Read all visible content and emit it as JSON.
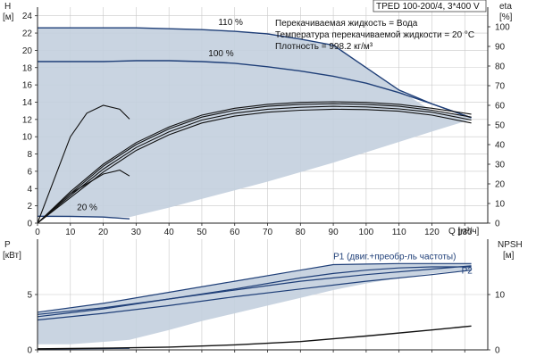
{
  "chart_data": [
    {
      "type": "line",
      "title": "TPED 100-200/4, 3*400 V",
      "info_lines": [
        "Перекачиваемая жидкость = Вода",
        "Температура перекачиваемой жидкости = 20 °C",
        "Плотность = 998.2 кг/м³"
      ],
      "xlabel": "Q [м³/ч]",
      "ylabel": "H\n[м]",
      "y2label": "eta\n[%]",
      "xlim": [
        0,
        137
      ],
      "ylim": [
        0,
        25
      ],
      "y2lim": [
        0,
        110
      ],
      "xticks": [
        0,
        10,
        20,
        30,
        40,
        50,
        60,
        70,
        80,
        90,
        100,
        110,
        120,
        130
      ],
      "yticks": [
        0,
        2,
        4,
        6,
        8,
        10,
        12,
        14,
        16,
        18,
        20,
        22,
        24
      ],
      "y2ticks": [
        0,
        10,
        20,
        30,
        40,
        50,
        60,
        70,
        80,
        90,
        100
      ],
      "curve_labels": [
        {
          "text": "110 %",
          "x": 55,
          "y": 22.6
        },
        {
          "text": "100 %",
          "x": 52,
          "y": 19.0
        },
        {
          "text": "20 %",
          "x": 12,
          "y": 1.2
        }
      ],
      "operating_area": {
        "upper": [
          [
            0,
            22.6
          ],
          [
            20,
            22.6
          ],
          [
            40,
            22.5
          ],
          [
            60,
            22.2
          ],
          [
            80,
            21.3
          ],
          [
            90,
            20.6
          ],
          [
            100,
            18.0
          ],
          [
            110,
            15.4
          ],
          [
            120,
            13.0
          ],
          [
            132,
            12.2
          ]
        ],
        "lower": [
          [
            132,
            12.0
          ],
          [
            120,
            10.6
          ],
          [
            110,
            9.4
          ],
          [
            100,
            8.2
          ],
          [
            90,
            7.0
          ],
          [
            80,
            5.9
          ],
          [
            70,
            4.8
          ],
          [
            60,
            3.8
          ],
          [
            50,
            2.8
          ],
          [
            40,
            1.8
          ],
          [
            28,
            0.7
          ],
          [
            0,
            0.7
          ]
        ]
      },
      "series": [
        {
          "name": "110 %",
          "x": [
            0,
            10,
            20,
            30,
            40,
            50,
            60,
            70,
            80,
            90,
            100,
            110,
            120,
            132
          ],
          "y": [
            22.6,
            22.6,
            22.6,
            22.6,
            22.5,
            22.4,
            22.2,
            21.9,
            21.3,
            20.6,
            18.0,
            15.4,
            13.8,
            12.2
          ]
        },
        {
          "name": "100 %",
          "x": [
            0,
            10,
            20,
            30,
            40,
            50,
            60,
            70,
            80,
            90,
            100,
            110,
            120,
            132
          ],
          "y": [
            18.7,
            18.7,
            18.7,
            18.8,
            18.8,
            18.7,
            18.5,
            18.1,
            17.6,
            17.0,
            16.2,
            15.1,
            13.8,
            12.2
          ]
        },
        {
          "name": "20 %",
          "x": [
            0,
            10,
            20,
            28
          ],
          "y": [
            0.8,
            0.78,
            0.7,
            0.5
          ]
        },
        {
          "name": "eta 110 %",
          "x": [
            0,
            10,
            20,
            30,
            40,
            50,
            60,
            70,
            80,
            90,
            100,
            110,
            120,
            132
          ],
          "y": [
            0,
            16,
            30,
            41,
            49,
            55,
            58.5,
            60.5,
            61.5,
            61.8,
            61.5,
            60.5,
            58.5,
            55.5
          ]
        },
        {
          "name": "eta 100 %",
          "x": [
            0,
            10,
            20,
            30,
            40,
            50,
            60,
            70,
            80,
            90,
            100,
            110,
            120,
            132
          ],
          "y": [
            0,
            15,
            29,
            40,
            48,
            54,
            57.5,
            59.5,
            60.5,
            60.8,
            60.5,
            59.5,
            57.5,
            54
          ]
        },
        {
          "name": "eta mid 1",
          "x": [
            0,
            10,
            20,
            30,
            40,
            50,
            60,
            70,
            80,
            90,
            100,
            110,
            120,
            132
          ],
          "y": [
            0,
            14,
            27.5,
            38.5,
            46.5,
            52.5,
            56,
            58,
            59,
            59.5,
            59.2,
            58.2,
            56.5,
            52.5
          ]
        },
        {
          "name": "eta mid 2",
          "x": [
            0,
            10,
            20,
            30,
            40,
            50,
            60,
            70,
            80,
            90,
            100,
            110,
            120,
            132
          ],
          "y": [
            0,
            13,
            26,
            37,
            45,
            51,
            54.5,
            56.5,
            57.5,
            58,
            57.8,
            57,
            55,
            51
          ]
        },
        {
          "name": "eta 20 %",
          "x": [
            0,
            5,
            10,
            15,
            20,
            25,
            28
          ],
          "y": [
            0,
            22,
            44,
            56,
            60,
            58,
            53
          ]
        },
        {
          "name": "eta low",
          "x": [
            0,
            10,
            20,
            25,
            28
          ],
          "y": [
            0,
            15,
            25,
            27,
            24
          ]
        }
      ]
    },
    {
      "type": "line",
      "ylabel": "P\n[кВт]",
      "y2label": "NPSH\n[м]",
      "xlim": [
        0,
        137
      ],
      "ylim": [
        0,
        10
      ],
      "y2lim": [
        0,
        20
      ],
      "yticks": [
        0,
        5
      ],
      "y2ticks": [
        0,
        10
      ],
      "curve_labels": [
        {
          "text": "P1 (двиг.+преобр-ль частоты)",
          "x": 90,
          "y": 8.2
        },
        {
          "text": "P2",
          "x": 129,
          "y": 6.9
        }
      ],
      "operating_area": {
        "upper": [
          [
            0,
            3.4
          ],
          [
            20,
            4.2
          ],
          [
            40,
            5.2
          ],
          [
            60,
            6.2
          ],
          [
            80,
            7.2
          ],
          [
            90,
            7.7
          ],
          [
            100,
            7.75
          ],
          [
            110,
            7.8
          ],
          [
            120,
            7.8
          ],
          [
            132,
            7.8
          ]
        ],
        "lower": [
          [
            132,
            7.2
          ],
          [
            120,
            6.9
          ],
          [
            110,
            6.5
          ],
          [
            100,
            6.0
          ],
          [
            90,
            5.4
          ],
          [
            80,
            4.7
          ],
          [
            70,
            4.0
          ],
          [
            60,
            3.3
          ],
          [
            50,
            2.6
          ],
          [
            40,
            1.8
          ],
          [
            28,
            0.9
          ],
          [
            10,
            0.5
          ],
          [
            0,
            0.5
          ]
        ]
      },
      "series": [
        {
          "name": "P1 110 %",
          "x": [
            0,
            20,
            40,
            60,
            80,
            90,
            100,
            110,
            120,
            132
          ],
          "y": [
            3.4,
            4.2,
            5.2,
            6.2,
            7.2,
            7.7,
            7.75,
            7.8,
            7.8,
            7.8
          ]
        },
        {
          "name": "P1 100 %",
          "x": [
            0,
            20,
            40,
            60,
            80,
            100,
            120,
            132
          ],
          "y": [
            3.2,
            3.8,
            4.6,
            5.4,
            6.2,
            6.8,
            7.3,
            7.6
          ]
        },
        {
          "name": "P2 110 %",
          "x": [
            0,
            20,
            40,
            60,
            80,
            90,
            100,
            110,
            120,
            132
          ],
          "y": [
            3.0,
            3.7,
            4.6,
            5.5,
            6.5,
            6.9,
            7.2,
            7.4,
            7.5,
            7.5
          ]
        },
        {
          "name": "P2 100 %",
          "x": [
            0,
            20,
            40,
            60,
            80,
            100,
            120,
            132
          ],
          "y": [
            2.7,
            3.3,
            4.0,
            4.8,
            5.5,
            6.2,
            6.8,
            7.2
          ]
        },
        {
          "name": "P 20 %",
          "x": [
            0,
            10,
            20,
            28
          ],
          "y": [
            0.08,
            0.1,
            0.12,
            0.14
          ]
        },
        {
          "name": "NPSH",
          "x": [
            0,
            20,
            40,
            60,
            80,
            100,
            120,
            132
          ],
          "y": [
            0.2,
            0.3,
            0.5,
            0.9,
            1.5,
            2.5,
            3.6,
            4.3
          ]
        }
      ]
    }
  ],
  "colors": {
    "area_fill": "#c3cfde",
    "curve": "#1f3f78",
    "eta_curve": "#111111",
    "grid": "#c8c8c8",
    "npsh": "#111111"
  }
}
